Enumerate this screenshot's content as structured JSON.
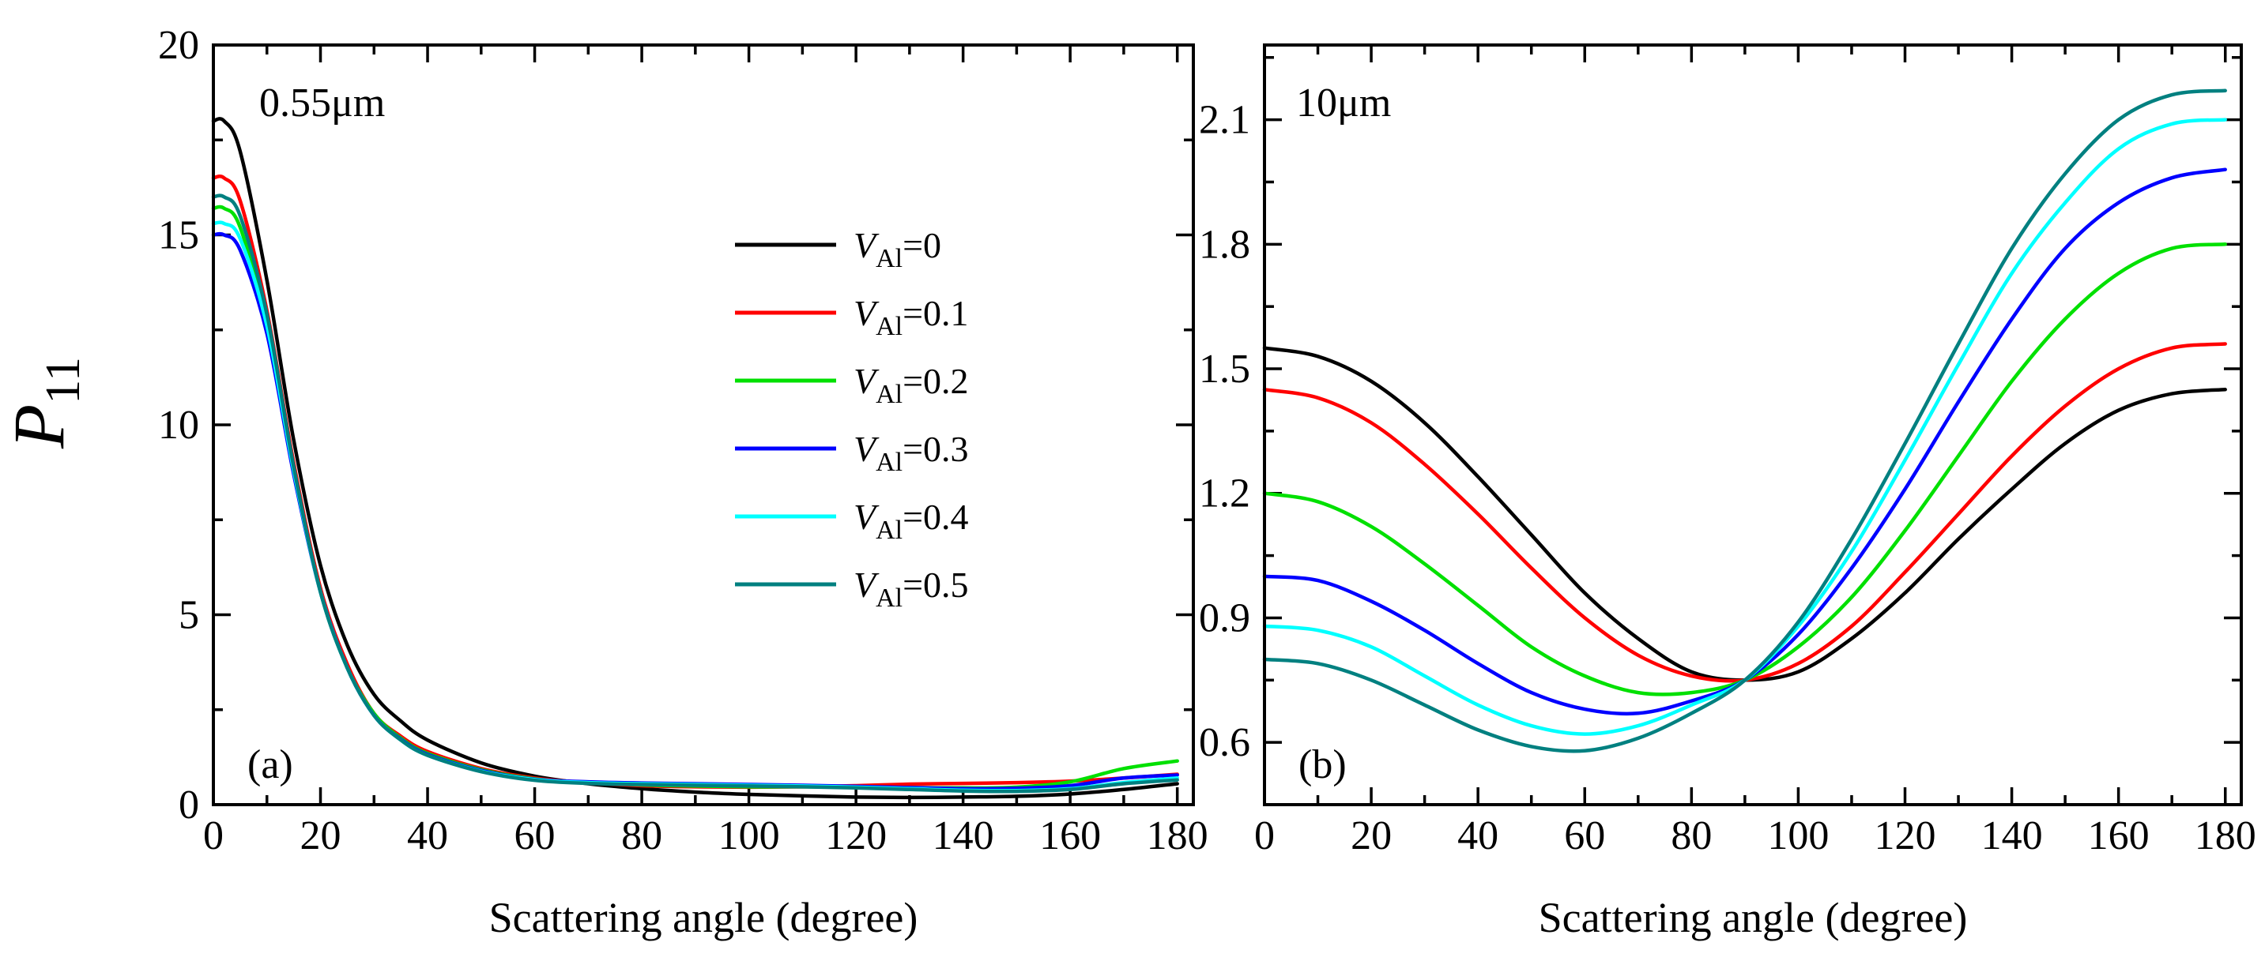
{
  "figure": {
    "ylabel_main": "P",
    "ylabel_sub": "11"
  },
  "legend": {
    "var_main": "V",
    "var_sub": "Al",
    "entries": [
      {
        "suffix": "=0",
        "color": "#000000"
      },
      {
        "suffix": "=0.1",
        "color": "#ff0000"
      },
      {
        "suffix": "=0.2",
        "color": "#00e000"
      },
      {
        "suffix": "=0.3",
        "color": "#0000ff"
      },
      {
        "suffix": "=0.4",
        "color": "#00ffff"
      },
      {
        "suffix": "=0.5",
        "color": "#008080"
      }
    ]
  },
  "chart_data": [
    {
      "type": "line",
      "panel": "(a)",
      "annotation": "0.55μm",
      "xlabel": "Scattering angle (degree)",
      "ylabel": "P11",
      "xlim": [
        0,
        183
      ],
      "ylim": [
        0,
        20
      ],
      "xticks": [
        0,
        20,
        40,
        60,
        80,
        100,
        120,
        140,
        160,
        180
      ],
      "yticks": [
        0,
        5,
        10,
        15,
        20
      ],
      "x": [
        0,
        2,
        5,
        10,
        15,
        20,
        25,
        30,
        35,
        40,
        50,
        60,
        70,
        80,
        90,
        100,
        110,
        120,
        130,
        140,
        150,
        160,
        170,
        180
      ],
      "series": [
        {
          "name": "VAl=0",
          "color": "#000000",
          "values": [
            18.0,
            18.0,
            17.2,
            13.8,
            9.6,
            6.3,
            4.2,
            2.9,
            2.2,
            1.7,
            1.1,
            0.75,
            0.55,
            0.42,
            0.33,
            0.27,
            0.23,
            0.2,
            0.19,
            0.2,
            0.22,
            0.28,
            0.4,
            0.55
          ]
        },
        {
          "name": "VAl=0.1",
          "color": "#ff0000",
          "values": [
            16.5,
            16.5,
            15.9,
            13.0,
            9.0,
            5.7,
            3.7,
            2.4,
            1.8,
            1.4,
            0.95,
            0.7,
            0.58,
            0.5,
            0.47,
            0.46,
            0.47,
            0.5,
            0.54,
            0.56,
            0.58,
            0.62,
            0.7,
            0.8
          ]
        },
        {
          "name": "VAl=0.2",
          "color": "#00e000",
          "values": [
            15.7,
            15.7,
            15.2,
            12.6,
            8.8,
            5.6,
            3.6,
            2.4,
            1.75,
            1.35,
            0.92,
            0.68,
            0.58,
            0.52,
            0.49,
            0.47,
            0.47,
            0.46,
            0.45,
            0.44,
            0.46,
            0.6,
            0.95,
            1.15
          ]
        },
        {
          "name": "VAl=0.3",
          "color": "#0000ff",
          "values": [
            15.0,
            15.0,
            14.6,
            12.4,
            8.7,
            5.6,
            3.6,
            2.35,
            1.72,
            1.32,
            0.9,
            0.67,
            0.6,
            0.57,
            0.55,
            0.53,
            0.51,
            0.48,
            0.45,
            0.42,
            0.43,
            0.5,
            0.7,
            0.78
          ]
        },
        {
          "name": "VAl=0.4",
          "color": "#00ffff",
          "values": [
            15.3,
            15.3,
            14.9,
            12.6,
            8.8,
            5.6,
            3.6,
            2.35,
            1.7,
            1.3,
            0.88,
            0.66,
            0.58,
            0.55,
            0.53,
            0.51,
            0.49,
            0.46,
            0.42,
            0.38,
            0.37,
            0.42,
            0.58,
            0.7
          ]
        },
        {
          "name": "VAl=0.5",
          "color": "#008080",
          "values": [
            16.0,
            16.0,
            15.5,
            12.9,
            8.9,
            5.6,
            3.6,
            2.35,
            1.7,
            1.3,
            0.87,
            0.64,
            0.56,
            0.53,
            0.51,
            0.49,
            0.47,
            0.44,
            0.4,
            0.36,
            0.35,
            0.4,
            0.55,
            0.65
          ]
        }
      ]
    },
    {
      "type": "line",
      "panel": "(b)",
      "annotation": "10μm",
      "xlabel": "Scattering angle (degree)",
      "ylabel": "P11",
      "xlim": [
        0,
        183
      ],
      "ylim": [
        0.45,
        2.28
      ],
      "xticks": [
        0,
        20,
        40,
        60,
        80,
        100,
        120,
        140,
        160,
        180
      ],
      "yticks": [
        0.6,
        0.9,
        1.2,
        1.5,
        1.8,
        2.1
      ],
      "x": [
        0,
        10,
        20,
        30,
        40,
        50,
        60,
        70,
        80,
        90,
        100,
        110,
        120,
        130,
        140,
        150,
        160,
        170,
        180
      ],
      "series": [
        {
          "name": "VAl=0",
          "color": "#000000",
          "values": [
            1.55,
            1.53,
            1.47,
            1.37,
            1.24,
            1.1,
            0.96,
            0.85,
            0.77,
            0.75,
            0.77,
            0.85,
            0.96,
            1.09,
            1.21,
            1.32,
            1.4,
            1.44,
            1.45
          ]
        },
        {
          "name": "VAl=0.1",
          "color": "#ff0000",
          "values": [
            1.45,
            1.43,
            1.37,
            1.27,
            1.15,
            1.02,
            0.9,
            0.81,
            0.76,
            0.75,
            0.79,
            0.88,
            1.01,
            1.15,
            1.29,
            1.41,
            1.5,
            1.55,
            1.56
          ]
        },
        {
          "name": "VAl=0.2",
          "color": "#00e000",
          "values": [
            1.2,
            1.18,
            1.12,
            1.03,
            0.93,
            0.83,
            0.76,
            0.72,
            0.72,
            0.75,
            0.83,
            0.95,
            1.11,
            1.29,
            1.47,
            1.62,
            1.73,
            1.79,
            1.8
          ]
        },
        {
          "name": "VAl=0.3",
          "color": "#0000ff",
          "values": [
            1.0,
            0.99,
            0.94,
            0.87,
            0.79,
            0.72,
            0.68,
            0.67,
            0.7,
            0.75,
            0.86,
            1.02,
            1.21,
            1.42,
            1.62,
            1.79,
            1.9,
            1.96,
            1.98
          ]
        },
        {
          "name": "VAl=0.4",
          "color": "#00ffff",
          "values": [
            0.88,
            0.87,
            0.83,
            0.76,
            0.69,
            0.64,
            0.62,
            0.64,
            0.69,
            0.75,
            0.88,
            1.06,
            1.28,
            1.51,
            1.73,
            1.9,
            2.03,
            2.09,
            2.1
          ]
        },
        {
          "name": "VAl=0.5",
          "color": "#008080",
          "values": [
            0.8,
            0.79,
            0.75,
            0.69,
            0.63,
            0.59,
            0.58,
            0.61,
            0.67,
            0.75,
            0.89,
            1.09,
            1.32,
            1.56,
            1.79,
            1.97,
            2.1,
            2.16,
            2.17
          ]
        }
      ]
    }
  ]
}
